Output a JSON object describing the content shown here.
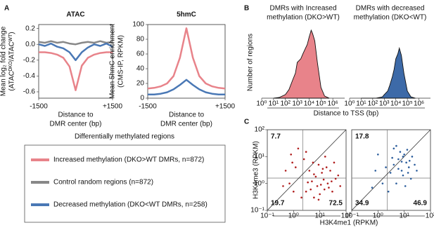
{
  "chart_data": [
    {
      "type": "line",
      "panel": "A",
      "title": "ATAC",
      "ylabel": [
        "Mean log₂ fold change",
        "(ATACᴰᴷᴼ/ATACᵂᵀ)"
      ],
      "xlabel": [
        "Distance to",
        "DMR center (bp)"
      ],
      "x": [
        -1500,
        -1250,
        -1000,
        -750,
        -500,
        -250,
        0,
        250,
        500,
        750,
        1000,
        1250,
        1500
      ],
      "xlim": [
        -1500,
        1500
      ],
      "xticks": [
        -1500,
        {
          "value": 1500,
          "label": "+1500"
        }
      ],
      "ylim": [
        -0.68,
        0.25
      ],
      "yticks": [
        0.2,
        {
          "value": 0,
          "label": "0.0"
        },
        -0.2,
        -0.4,
        -0.6
      ],
      "legend_title": "Differentially methylated regions",
      "series": [
        {
          "name": "Increased methylation (DKO>WT DMRs, n=872)",
          "color": "#e8838a",
          "values": [
            -0.1,
            -0.1,
            -0.11,
            -0.13,
            -0.17,
            -0.28,
            -0.58,
            -0.27,
            -0.17,
            -0.13,
            -0.11,
            -0.1,
            -0.1
          ]
        },
        {
          "name": "Control random regions (n=872)",
          "color": "#888888",
          "values": [
            0.03,
            0.02,
            0.04,
            0.02,
            0.03,
            0.01,
            0.0,
            0.02,
            0.03,
            0.02,
            0.04,
            0.02,
            0.03
          ]
        },
        {
          "name": "Decreased methylation (DKO<WT DMRs, n=258)",
          "color": "#4a78b5",
          "values": [
            0.0,
            -0.02,
            0.01,
            -0.03,
            -0.05,
            -0.1,
            -0.2,
            -0.1,
            -0.04,
            0.0,
            -0.02,
            0.01,
            -0.03
          ]
        }
      ]
    },
    {
      "type": "line",
      "title": "5hmC",
      "ylabel": [
        "Mean 5hmC enrichment",
        "(CMS-IP, RPKM)"
      ],
      "xlabel": [
        "Distance to",
        "DMR center (bp)"
      ],
      "x": [
        -1500,
        -1250,
        -1000,
        -750,
        -500,
        -250,
        0,
        250,
        500,
        750,
        1000,
        1250,
        1500
      ],
      "xlim": [
        -1500,
        1500
      ],
      "xticks": [
        -1500,
        {
          "value": 1500,
          "label": "+1500"
        }
      ],
      "ylim": [
        0,
        100
      ],
      "yticks": [
        0,
        20,
        40,
        60,
        80,
        100
      ],
      "series": [
        {
          "color": "#e8838a",
          "values": [
            13,
            14,
            16,
            20,
            30,
            55,
            95,
            55,
            30,
            20,
            16,
            14,
            13
          ]
        },
        {
          "color": "#4a78b5",
          "values": [
            5,
            5,
            6,
            8,
            12,
            18,
            25,
            18,
            12,
            8,
            6,
            5,
            5
          ]
        }
      ]
    },
    {
      "type": "area",
      "panel": "B",
      "title": [
        "DMRs with Increased",
        "methylation (DKO>WT)"
      ],
      "title_color": "#d0242b",
      "ylabel": "Number of regions",
      "xlabel": "Distance to TSS (bp)",
      "xlog": true,
      "x": [
        10,
        30,
        100,
        200,
        400,
        700,
        1000,
        2000,
        3000,
        5000,
        7000,
        10000,
        15000,
        20000,
        30000,
        50000,
        100000,
        200000,
        500000
      ],
      "values": [
        0,
        0.01,
        0.05,
        0.12,
        0.25,
        0.35,
        0.5,
        0.55,
        0.62,
        0.7,
        0.75,
        0.85,
        0.95,
        0.9,
        0.8,
        0.5,
        0.15,
        0.03,
        0
      ],
      "color": "#e8838a",
      "xlim": [
        1,
        10000000
      ],
      "ylim": [
        0,
        1
      ],
      "xticks": [
        {
          "value": 1,
          "label": "10⁰"
        },
        {
          "value": 10,
          "label": "10¹"
        },
        {
          "value": 100,
          "label": "10²"
        },
        {
          "value": 1000,
          "label": "10³"
        },
        {
          "value": 10000,
          "label": "10⁴"
        },
        {
          "value": 100000,
          "label": "10⁵"
        },
        {
          "value": 1000000,
          "label": "10⁶"
        }
      ]
    },
    {
      "type": "area",
      "title": [
        "DMRs with decreased",
        "methylation (DKO<WT)"
      ],
      "title_color": "#2f7fc1",
      "xlog": true,
      "x": [
        10,
        30,
        100,
        200,
        400,
        700,
        1000,
        2000,
        3000,
        5000,
        7000,
        10000,
        15000,
        20000,
        30000,
        50000,
        100000,
        200000,
        500000
      ],
      "values": [
        0,
        0,
        0,
        0,
        0.01,
        0.02,
        0.05,
        0.1,
        0.18,
        0.3,
        0.4,
        0.55,
        0.62,
        0.7,
        0.6,
        0.35,
        0.1,
        0.02,
        0
      ],
      "color": "#3d6aa8",
      "xlim": [
        1,
        10000000
      ],
      "ylim": [
        0,
        1
      ],
      "xticks": [
        {
          "value": 1,
          "label": "10⁰"
        },
        {
          "value": 10,
          "label": "10¹"
        },
        {
          "value": 100,
          "label": "10²"
        },
        {
          "value": 1000,
          "label": "10³"
        },
        {
          "value": 10000,
          "label": "10⁴"
        },
        {
          "value": 100000,
          "label": "10⁵"
        },
        {
          "value": 1000000,
          "label": "10⁶"
        }
      ]
    },
    {
      "type": "scatter",
      "panel": "C",
      "xlabel": "H3K4me1 (RPKM)",
      "ylabel": "H3K4me3 (RPKM)",
      "xlog": true,
      "ylog": true,
      "xlim": [
        0.1,
        100
      ],
      "ylim": [
        0.1,
        100
      ],
      "color": "#b01c1c",
      "quadrant_labels": [
        "7.7",
        "19.7",
        "72.5"
      ],
      "xticks": [
        {
          "value": 0.1,
          "label": "10⁻¹"
        },
        {
          "value": 1,
          "label": "10⁰"
        },
        {
          "value": 10,
          "label": "10¹"
        },
        {
          "value": 100,
          "label": "10²"
        }
      ],
      "yticks": [
        {
          "value": 0.1,
          "label": "10⁻¹"
        },
        {
          "value": 1,
          "label": "10⁰"
        },
        {
          "value": 10,
          "label": "10¹"
        },
        {
          "value": 100,
          "label": "10²"
        }
      ],
      "x": [
        3,
        5,
        8,
        12,
        20,
        4,
        6,
        15,
        25,
        9,
        30,
        7,
        11,
        18,
        40,
        3.5,
        5.5,
        10,
        14,
        22,
        2.5,
        1.2,
        0.8,
        1.5,
        0.5,
        0.7,
        1,
        0.4,
        2,
        50,
        16,
        6,
        9,
        35,
        4.5,
        13,
        28,
        0.9,
        60,
        3
      ],
      "values": [
        0.5,
        1.2,
        0.8,
        2.5,
        1,
        3,
        0.3,
        0.6,
        3,
        5,
        0.5,
        1.8,
        0.9,
        4,
        1.5,
        1.1,
        6,
        0.4,
        1.4,
        0.7,
        8,
        4,
        12,
        20,
        3,
        1,
        0.5,
        0.8,
        0.3,
        2,
        10,
        2.2,
        0.25,
        6,
        0.6,
        3.5,
        1.2,
        6,
        0.8,
        15
      ]
    },
    {
      "type": "scatter",
      "xlog": true,
      "ylog": true,
      "xlim": [
        0.1,
        100
      ],
      "ylim": [
        0.1,
        100
      ],
      "color": "#2b5d9c",
      "quadrant_labels": [
        "17.8",
        "34.9",
        "46.9"
      ],
      "xticks": [
        {
          "value": 0.1,
          "label": "10⁻¹"
        },
        {
          "value": 1,
          "label": "10⁰"
        },
        {
          "value": 10,
          "label": "10¹"
        },
        {
          "value": 100,
          "label": "10²"
        }
      ],
      "x": [
        4,
        6,
        8,
        10,
        3,
        5,
        12,
        15,
        20,
        7,
        2,
        9,
        11,
        4,
        6,
        14,
        25,
        3.5,
        8,
        18,
        1.5,
        0.8,
        1,
        0.6,
        2.5,
        5,
        13,
        30,
        9,
        16
      ],
      "values": [
        5,
        8,
        3,
        12,
        2.5,
        1,
        6,
        4,
        10,
        15,
        4,
        2,
        0.8,
        20,
        3.5,
        2.5,
        5,
        9,
        6.5,
        1.5,
        1,
        3,
        12,
        0.7,
        0.5,
        25,
        18,
        3,
        10,
        7
      ]
    }
  ]
}
